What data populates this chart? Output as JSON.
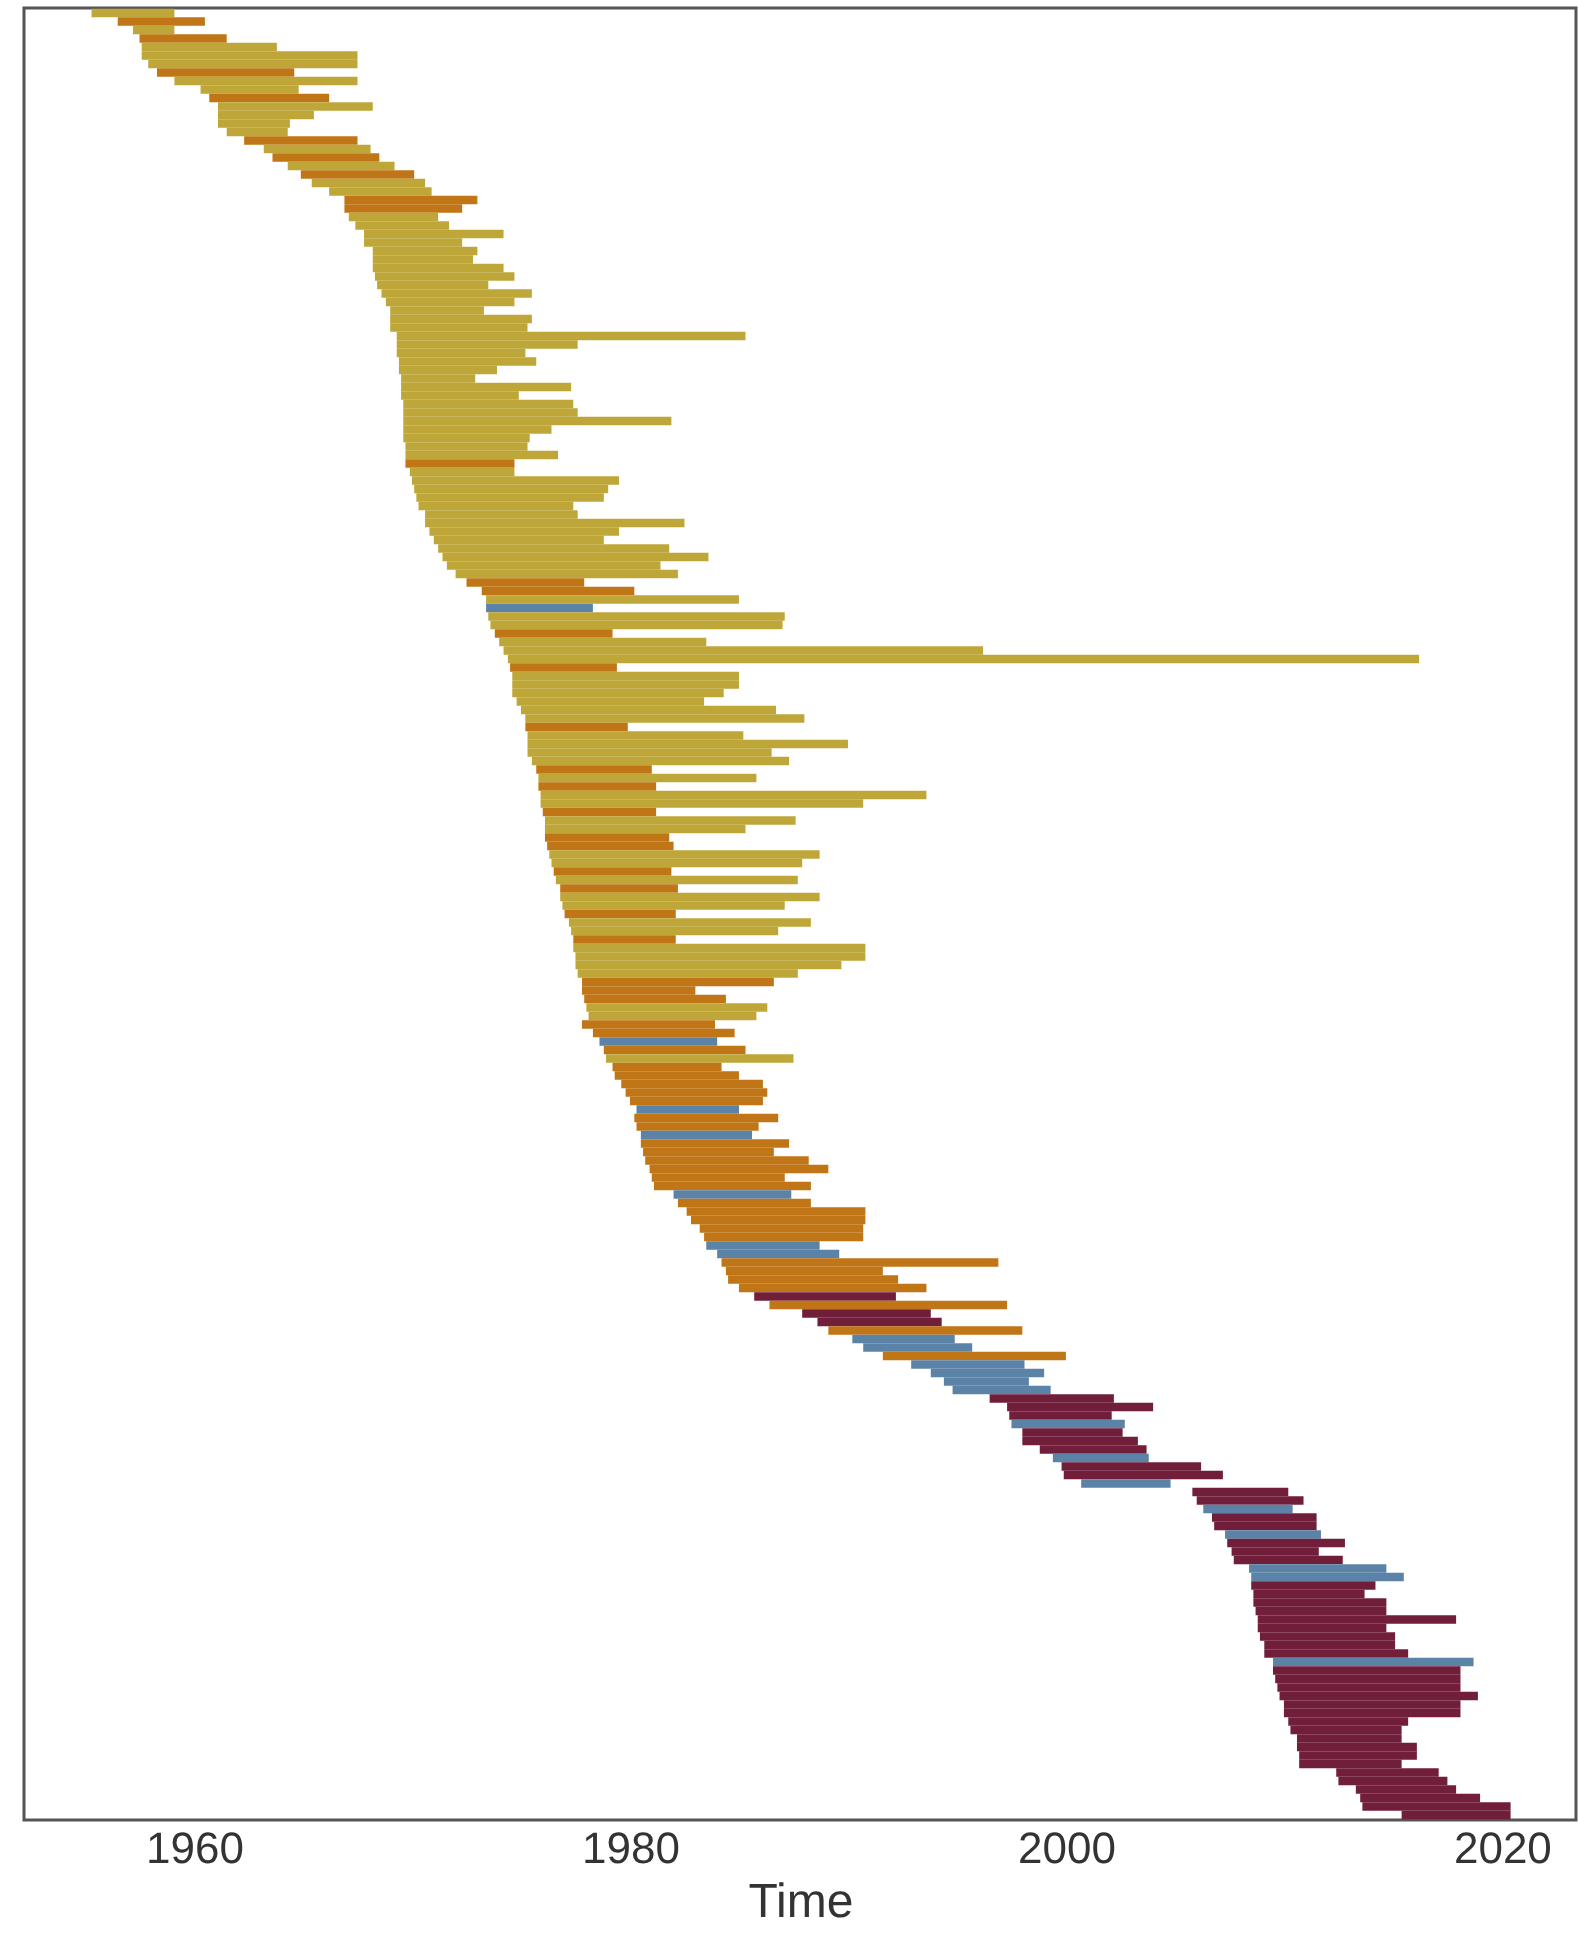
{
  "chart_data": {
    "type": "bar",
    "orientation": "horizontal",
    "xlabel": "Time",
    "xlim": [
      1952.2,
      2023.4
    ],
    "xticks": [
      1960,
      1980,
      2000,
      2020
    ],
    "tick_labels": "x",
    "base": [
      1955.3,
      1956.5,
      1957.2,
      1957.5,
      1957.6,
      1957.6,
      1957.9,
      1958.3,
      1959.1,
      1960.3,
      1960.7,
      1961.1,
      1961.1,
      1961.1,
      1961.5,
      1962.3,
      1963.2,
      1963.6,
      1964.3,
      1964.9,
      1965.4,
      1966.2,
      1966.9,
      1966.9,
      1967.1,
      1967.4,
      1967.8,
      1967.8,
      1968.2,
      1968.2,
      1968.2,
      1968.3,
      1968.4,
      1968.6,
      1968.8,
      1969.0,
      1969.0,
      1969.0,
      1969.3,
      1969.3,
      1969.3,
      1969.4,
      1969.4,
      1969.5,
      1969.5,
      1969.5,
      1969.6,
      1969.6,
      1969.6,
      1969.6,
      1969.6,
      1969.7,
      1969.7,
      1969.7,
      1969.9,
      1970.0,
      1970.1,
      1970.2,
      1970.3,
      1970.6,
      1970.6,
      1970.8,
      1971.0,
      1971.2,
      1971.4,
      1971.6,
      1972.0,
      1972.5,
      1973.2,
      1973.4,
      1973.4,
      1973.5,
      1973.6,
      1973.8,
      1974.0,
      1974.2,
      1974.4,
      1974.5,
      1974.6,
      1974.6,
      1974.6,
      1974.8,
      1975.0,
      1975.2,
      1975.2,
      1975.3,
      1975.3,
      1975.3,
      1975.5,
      1975.7,
      1975.8,
      1975.8,
      1975.9,
      1975.9,
      1976.0,
      1976.1,
      1976.1,
      1976.1,
      1976.2,
      1976.3,
      1976.4,
      1976.5,
      1976.6,
      1976.8,
      1976.8,
      1976.9,
      1977.0,
      1977.2,
      1977.3,
      1977.4,
      1977.4,
      1977.5,
      1977.5,
      1977.6,
      1977.8,
      1977.8,
      1977.9,
      1978.0,
      1978.1,
      1977.8,
      1978.3,
      1978.6,
      1978.8,
      1978.9,
      1979.2,
      1979.3,
      1979.6,
      1979.8,
      1980.0,
      1980.3,
      1980.2,
      1980.3,
      1980.5,
      1980.5,
      1980.6,
      1980.7,
      1980.9,
      1981.0,
      1981.1,
      1982.0,
      1982.2,
      1982.6,
      1982.8,
      1983.2,
      1983.4,
      1983.5,
      1984.0,
      1984.2,
      1984.4,
      1984.5,
      1985.0,
      1985.7,
      1986.4,
      1987.9,
      1988.6,
      1989.1,
      1990.2,
      1990.7,
      1991.6,
      1992.9,
      1993.8,
      1994.4,
      1994.8,
      1996.5,
      1997.3,
      1997.4,
      1997.5,
      1998.0,
      1998.0,
      1998.8,
      1999.4,
      1999.8,
      1999.9,
      2000.7,
      2005.8,
      2006.0,
      2006.3,
      2006.7,
      2006.8,
      2007.3,
      2007.4,
      2007.6,
      2007.7,
      2008.4,
      2008.5,
      2008.5,
      2008.6,
      2008.6,
      2008.7,
      2008.8,
      2008.8,
      2008.9,
      2009.1,
      2009.1,
      2009.5,
      2009.5,
      2009.6,
      2009.7,
      2009.8,
      2010.0,
      2010.0,
      2010.2,
      2010.3,
      2010.6,
      2010.6,
      2010.7,
      2010.7,
      2012.4,
      2012.5,
      2013.3,
      2013.5,
      2013.6,
      2015.4
    ],
    "values": [
      3.8,
      4.0,
      1.9,
      4.0,
      6.2,
      9.9,
      9.6,
      6.3,
      8.4,
      4.5,
      5.5,
      7.1,
      4.4,
      3.3,
      2.8,
      5.2,
      4.9,
      4.9,
      4.9,
      5.2,
      5.2,
      4.7,
      6.1,
      5.4,
      4.1,
      4.3,
      6.4,
      4.5,
      4.8,
      4.6,
      6.0,
      6.4,
      5.1,
      6.9,
      5.9,
      4.3,
      6.5,
      6.3,
      16.0,
      8.3,
      5.9,
      6.3,
      4.5,
      3.4,
      7.8,
      5.4,
      7.8,
      8.0,
      12.3,
      6.8,
      5.8,
      5.6,
      7.0,
      5.0,
      4.8,
      9.5,
      8.9,
      8.6,
      7.1,
      7.0,
      11.9,
      8.7,
      7.8,
      10.6,
      12.2,
      9.8,
      10.2,
      5.4,
      7.0,
      11.6,
      4.9,
      13.6,
      13.4,
      5.4,
      9.5,
      22.0,
      41.8,
      4.9,
      10.4,
      10.4,
      9.7,
      8.6,
      11.7,
      12.8,
      4.7,
      9.9,
      14.7,
      11.2,
      11.8,
      5.3,
      10.0,
      5.4,
      17.7,
      14.8,
      5.2,
      11.5,
      9.2,
      5.7,
      5.8,
      12.4,
      11.5,
      5.4,
      11.1,
      5.4,
      11.9,
      10.2,
      5.1,
      11.1,
      9.5,
      4.7,
      13.4,
      13.3,
      12.2,
      10.1,
      8.8,
      5.2,
      6.5,
      8.3,
      7.7,
      6.1,
      6.5,
      5.4,
      6.5,
      8.6,
      5.0,
      5.7,
      6.5,
      6.5,
      6.1,
      4.7,
      6.6,
      5.6,
      5.1,
      6.8,
      6.0,
      7.5,
      8.2,
      6.1,
      7.2,
      5.4,
      6.1,
      8.2,
      8.0,
      7.5,
      7.3,
      5.2,
      5.6,
      12.7,
      7.2,
      7.8,
      8.6,
      6.5,
      10.9,
      5.9,
      5.7,
      8.9,
      4.7,
      5.0,
      8.4,
      5.2,
      5.2,
      3.9,
      4.5,
      5.7,
      6.7,
      4.7,
      5.2,
      4.6,
      5.3,
      4.9,
      4.4,
      6.4,
      7.3,
      4.1,
      4.4,
      4.9,
      4.1,
      4.8,
      4.7,
      4.4,
      5.4,
      4.0,
      5.0,
      6.3,
      7.0,
      5.7,
      5.1,
      6.1,
      6.0,
      9.1,
      5.9,
      6.2,
      6.0,
      6.6,
      9.2,
      8.6,
      8.5,
      8.4,
      9.1,
      8.1,
      8.1,
      5.5,
      5.1,
      4.8,
      5.5,
      5.4,
      4.7,
      4.7,
      5.0,
      4.6,
      5.5,
      6.8,
      5.0
    ],
    "colors": [
      "#bea738",
      "#c07516",
      "#bea738",
      "#c07516",
      "#bea738",
      "#bea738",
      "#bea738",
      "#c07516",
      "#bea738",
      "#bea738",
      "#c07516",
      "#bea738",
      "#bea738",
      "#bea738",
      "#bea738",
      "#c07516",
      "#bea738",
      "#c07516",
      "#bea738",
      "#c07516",
      "#bea738",
      "#bea738",
      "#c07516",
      "#c07516",
      "#bea738",
      "#bea738",
      "#bea738",
      "#bea738",
      "#bea738",
      "#bea738",
      "#bea738",
      "#bea738",
      "#bea738",
      "#bea738",
      "#bea738",
      "#bea738",
      "#bea738",
      "#bea738",
      "#bea738",
      "#bea738",
      "#bea738",
      "#bea738",
      "#bea738",
      "#bea738",
      "#bea738",
      "#bea738",
      "#bea738",
      "#bea738",
      "#bea738",
      "#bea738",
      "#bea738",
      "#bea738",
      "#bea738",
      "#c07516",
      "#bea738",
      "#bea738",
      "#bea738",
      "#bea738",
      "#bea738",
      "#bea738",
      "#bea738",
      "#bea738",
      "#bea738",
      "#bea738",
      "#bea738",
      "#bea738",
      "#bea738",
      "#c07516",
      "#c07516",
      "#bea738",
      "#5b83a8",
      "#bea738",
      "#bea738",
      "#c07516",
      "#bea738",
      "#bea738",
      "#bea738",
      "#c07516",
      "#bea738",
      "#bea738",
      "#bea738",
      "#bea738",
      "#bea738",
      "#bea738",
      "#c07516",
      "#bea738",
      "#bea738",
      "#bea738",
      "#bea738",
      "#c07516",
      "#bea738",
      "#c07516",
      "#bea738",
      "#bea738",
      "#c07516",
      "#bea738",
      "#bea738",
      "#c07516",
      "#c07516",
      "#bea738",
      "#bea738",
      "#c07516",
      "#bea738",
      "#c07516",
      "#bea738",
      "#bea738",
      "#c07516",
      "#bea738",
      "#bea738",
      "#c07516",
      "#bea738",
      "#bea738",
      "#bea738",
      "#bea738",
      "#c07516",
      "#c07516",
      "#c07516",
      "#bea738",
      "#bea738",
      "#c07516",
      "#c07516",
      "#5b83a8",
      "#c07516",
      "#bea738",
      "#c07516",
      "#c07516",
      "#c07516",
      "#c07516",
      "#c07516",
      "#5b83a8",
      "#c07516",
      "#c07516",
      "#5b83a8",
      "#c07516",
      "#c07516",
      "#c07516",
      "#c07516",
      "#c07516",
      "#c07516",
      "#5b83a8",
      "#c07516",
      "#c07516",
      "#c07516",
      "#c07516",
      "#c07516",
      "#5b83a8",
      "#5b83a8",
      "#c07516",
      "#c07516",
      "#c07516",
      "#c07516",
      "#701e3a",
      "#c07516",
      "#701e3a",
      "#701e3a",
      "#c07516",
      "#5b83a8",
      "#5b83a8",
      "#c07516",
      "#5b83a8",
      "#5b83a8",
      "#5b83a8",
      "#5b83a8",
      "#701e3a",
      "#701e3a",
      "#701e3a",
      "#5b83a8",
      "#701e3a",
      "#701e3a",
      "#701e3a",
      "#5b83a8",
      "#701e3a",
      "#701e3a",
      "#5b83a8",
      "#701e3a",
      "#701e3a",
      "#5b83a8",
      "#701e3a",
      "#701e3a",
      "#5b83a8",
      "#701e3a",
      "#701e3a",
      "#701e3a",
      "#5b83a8",
      "#5b83a8",
      "#701e3a",
      "#701e3a",
      "#701e3a",
      "#701e3a",
      "#701e3a",
      "#701e3a",
      "#701e3a",
      "#701e3a",
      "#701e3a",
      "#5b83a8",
      "#701e3a",
      "#701e3a",
      "#701e3a",
      "#701e3a",
      "#701e3a",
      "#701e3a",
      "#701e3a",
      "#701e3a",
      "#701e3a",
      "#701e3a",
      "#701e3a",
      "#701e3a",
      "#701e3a",
      "#701e3a",
      "#701e3a",
      "#701e3a",
      "#701e3a",
      "#701e3a"
    ],
    "categories": [
      null,
      null,
      null,
      null,
      null,
      null,
      null,
      null,
      null,
      null,
      null,
      null,
      null,
      null,
      null,
      null,
      null,
      null,
      null,
      null,
      null,
      null,
      null,
      null,
      null,
      null,
      null,
      null,
      null,
      null,
      null,
      null,
      null,
      null,
      null,
      null,
      null,
      null,
      null,
      null,
      null,
      null,
      null,
      null,
      null,
      null,
      null,
      null,
      null,
      null,
      null,
      null,
      null,
      null,
      null,
      null,
      null,
      null,
      null,
      null,
      null,
      null,
      null,
      null,
      null,
      null,
      null,
      null,
      null,
      null,
      null,
      null,
      null,
      null,
      null,
      null,
      null,
      null,
      null,
      null,
      null,
      null,
      null,
      null,
      null,
      null,
      null,
      null,
      null,
      null,
      null,
      null,
      null,
      null,
      null,
      null,
      null,
      null,
      null,
      null,
      null,
      null,
      null,
      null,
      null,
      null,
      null,
      null,
      null,
      null,
      null,
      null,
      null,
      null,
      null,
      null,
      null,
      null,
      null,
      null,
      null,
      null,
      null,
      null,
      null,
      null,
      null,
      null,
      null,
      null,
      null,
      null,
      null,
      null,
      null,
      null,
      null,
      null,
      null,
      null,
      null,
      null,
      null,
      null,
      null,
      null,
      null,
      null,
      null,
      null,
      null,
      null,
      null,
      null,
      null,
      null,
      null,
      null,
      null,
      null,
      null,
      null,
      null,
      null,
      null,
      null,
      null,
      null,
      null,
      null,
      null,
      null,
      null,
      null,
      null,
      null,
      null,
      null,
      null,
      null,
      null,
      null,
      null,
      null,
      null,
      null,
      null,
      null,
      null,
      null,
      null,
      null,
      null,
      null,
      null,
      null,
      null,
      null,
      null,
      null,
      null,
      null,
      null,
      null,
      null,
      null,
      null,
      null,
      null,
      null,
      null,
      null,
      null
    ]
  }
}
